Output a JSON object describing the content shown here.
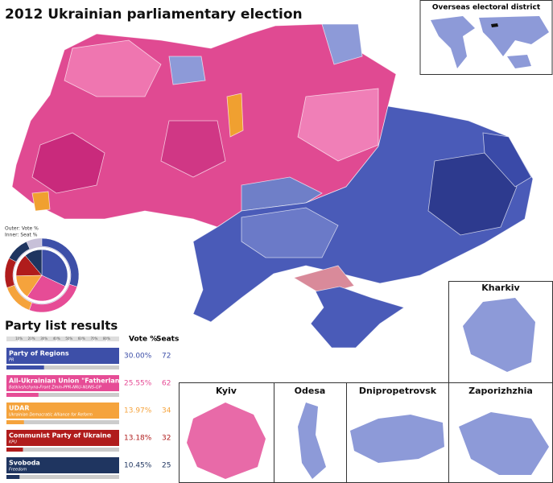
{
  "title": "2012 Ukrainian parliamentary election",
  "overseas": {
    "label": "Overseas electoral district"
  },
  "pie_legend": {
    "outer": "Outer: Vote %",
    "inner": "Inner: Seat %"
  },
  "results": {
    "heading": "Party list results",
    "vote_header": "Vote %",
    "seats_header": "Seats",
    "scale_lim": [
      0,
      90
    ],
    "scale_ticks": [
      {
        "value": 10,
        "label": "10%"
      },
      {
        "value": 20,
        "label": "20%"
      },
      {
        "value": 30,
        "label": "30%"
      },
      {
        "value": 40,
        "label": "40%"
      },
      {
        "value": 50,
        "label": "50%"
      },
      {
        "value": 60,
        "label": "60%"
      },
      {
        "value": 70,
        "label": "70%"
      },
      {
        "value": 80,
        "label": "80%"
      }
    ],
    "parties": [
      {
        "name": "Party of Regions",
        "abbr": "PR",
        "color": "#3d4fa8",
        "vote": 30.0,
        "vote_label": "30.00%",
        "seats": 72
      },
      {
        "name": "All-Ukrainian Union \"Fatherland\"",
        "abbr": "Batkivshchyna-Front Zmin-PPR-NRU-NUNS-GP",
        "color": "#e64c96",
        "vote": 25.55,
        "vote_label": "25.55%",
        "seats": 62
      },
      {
        "name": "UDAR",
        "abbr": "Ukrainian Democratic Alliance for Reform",
        "color": "#f5a33c",
        "vote": 13.97,
        "vote_label": "13.97%",
        "seats": 34
      },
      {
        "name": "Communist Party of Ukraine",
        "abbr": "KPU",
        "color": "#b01c1c",
        "vote": 13.18,
        "vote_label": "13.18%",
        "seats": 32
      },
      {
        "name": "Svoboda",
        "abbr": "Freedom",
        "color": "#1f3560",
        "vote": 10.45,
        "vote_label": "10.45%",
        "seats": 25
      }
    ]
  },
  "insets": {
    "kharkiv": "Kharkiv",
    "kyiv": "Kyiv",
    "odesa": "Odesa",
    "dnipropetrovsk": "Dnipropetrovsk",
    "zaporizhzhia": "Zaporizhzhia"
  }
}
